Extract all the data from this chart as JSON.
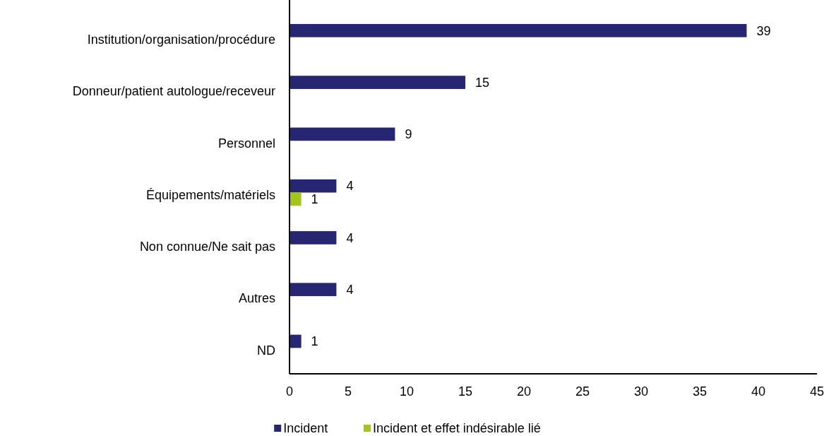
{
  "chart_data": {
    "type": "bar",
    "orientation": "horizontal",
    "categories": [
      "Institution/organisation/procédure",
      "Donneur/patient autologue/receveur",
      "Personnel",
      "Équipements/matériels",
      "Non connue/Ne sait pas",
      "Autres",
      "ND"
    ],
    "series": [
      {
        "name": "Incident",
        "color": "#262673",
        "values": [
          39,
          15,
          9,
          4,
          4,
          4,
          1
        ]
      },
      {
        "name": "Incident et effet indésirable lié",
        "color": "#a3c61c",
        "values": [
          null,
          null,
          null,
          1,
          null,
          null,
          null
        ]
      }
    ],
    "xlim": [
      0,
      45
    ],
    "xticks": [
      0,
      5,
      10,
      15,
      20,
      25,
      30,
      35,
      40,
      45
    ],
    "data_labels": true,
    "grid": false,
    "legend": "bottom"
  }
}
